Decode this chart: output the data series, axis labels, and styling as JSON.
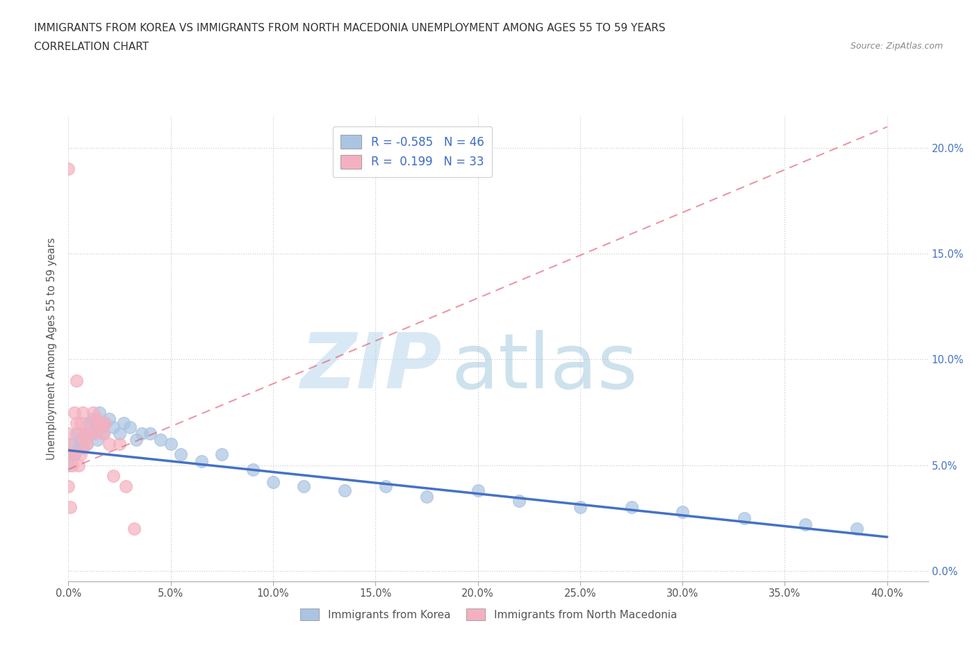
{
  "title_line1": "IMMIGRANTS FROM KOREA VS IMMIGRANTS FROM NORTH MACEDONIA UNEMPLOYMENT AMONG AGES 55 TO 59 YEARS",
  "title_line2": "CORRELATION CHART",
  "source": "Source: ZipAtlas.com",
  "ylabel": "Unemployment Among Ages 55 to 59 years",
  "xlim": [
    0.0,
    0.42
  ],
  "ylim": [
    -0.005,
    0.215
  ],
  "korea_R": -0.585,
  "korea_N": 46,
  "macedonia_R": 0.199,
  "macedonia_N": 33,
  "korea_color": "#aac4e2",
  "korea_line_color": "#4472c4",
  "macedonia_color": "#f4b0c0",
  "macedonia_line_color": "#e06070",
  "korea_scatter_x": [
    0.0,
    0.0,
    0.002,
    0.003,
    0.004,
    0.005,
    0.006,
    0.007,
    0.008,
    0.009,
    0.01,
    0.011,
    0.012,
    0.013,
    0.014,
    0.015,
    0.016,
    0.017,
    0.018,
    0.02,
    0.022,
    0.025,
    0.027,
    0.03,
    0.033,
    0.036,
    0.04,
    0.045,
    0.05,
    0.055,
    0.065,
    0.075,
    0.09,
    0.1,
    0.115,
    0.135,
    0.155,
    0.175,
    0.2,
    0.22,
    0.25,
    0.275,
    0.3,
    0.33,
    0.36,
    0.385
  ],
  "korea_scatter_y": [
    0.055,
    0.05,
    0.06,
    0.055,
    0.065,
    0.058,
    0.062,
    0.058,
    0.065,
    0.06,
    0.07,
    0.065,
    0.072,
    0.068,
    0.062,
    0.075,
    0.068,
    0.065,
    0.07,
    0.072,
    0.068,
    0.065,
    0.07,
    0.068,
    0.062,
    0.065,
    0.065,
    0.062,
    0.06,
    0.055,
    0.052,
    0.055,
    0.048,
    0.042,
    0.04,
    0.038,
    0.04,
    0.035,
    0.038,
    0.033,
    0.03,
    0.03,
    0.028,
    0.025,
    0.022,
    0.02
  ],
  "macedonia_scatter_x": [
    0.0,
    0.0,
    0.0,
    0.0,
    0.001,
    0.001,
    0.002,
    0.003,
    0.003,
    0.004,
    0.004,
    0.005,
    0.005,
    0.006,
    0.006,
    0.007,
    0.007,
    0.008,
    0.009,
    0.01,
    0.011,
    0.012,
    0.013,
    0.014,
    0.015,
    0.016,
    0.017,
    0.018,
    0.02,
    0.022,
    0.025,
    0.028,
    0.032
  ],
  "macedonia_scatter_y": [
    0.19,
    0.065,
    0.06,
    0.04,
    0.055,
    0.03,
    0.05,
    0.075,
    0.055,
    0.09,
    0.07,
    0.065,
    0.05,
    0.07,
    0.055,
    0.075,
    0.06,
    0.065,
    0.06,
    0.065,
    0.07,
    0.075,
    0.065,
    0.072,
    0.07,
    0.068,
    0.065,
    0.07,
    0.06,
    0.045,
    0.06,
    0.04,
    0.02
  ],
  "korea_trend_x": [
    0.0,
    0.4
  ],
  "korea_trend_y": [
    0.057,
    0.016
  ],
  "macedonia_trend_x": [
    0.0,
    0.4
  ],
  "macedonia_trend_y": [
    0.048,
    0.21
  ]
}
